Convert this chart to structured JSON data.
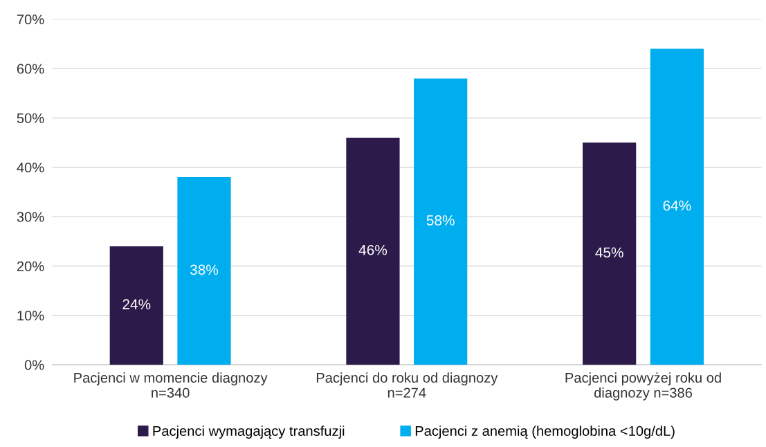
{
  "chart_data": {
    "type": "bar",
    "categories": [
      "Pacjenci w momencie diagnozy\nn=340",
      "Pacjenci do roku od diagnozy\nn=274",
      "Pacjenci powyżej roku od\ndiagnozy n=386"
    ],
    "series": [
      {
        "name": "Pacjenci wymagający transfuzji",
        "color": "#2b1a4a",
        "values": [
          24,
          46,
          45
        ],
        "value_labels": [
          "24%",
          "46%",
          "45%"
        ]
      },
      {
        "name": "Pacjenci z anemią (hemoglobina <10g/dL)",
        "color": "#00aeef",
        "values": [
          38,
          58,
          64
        ],
        "value_labels": [
          "38%",
          "58%",
          "64%"
        ]
      }
    ],
    "ylim": [
      0,
      70
    ],
    "yticks": [
      {
        "value": 0,
        "label": "0%"
      },
      {
        "value": 10,
        "label": "10%"
      },
      {
        "value": 20,
        "label": "20%"
      },
      {
        "value": 30,
        "label": "30%"
      },
      {
        "value": 40,
        "label": "40%"
      },
      {
        "value": 50,
        "label": "50%"
      },
      {
        "value": 60,
        "label": "60%"
      },
      {
        "value": 70,
        "label": "70%"
      }
    ],
    "grid": "y",
    "legend": "bottom"
  }
}
